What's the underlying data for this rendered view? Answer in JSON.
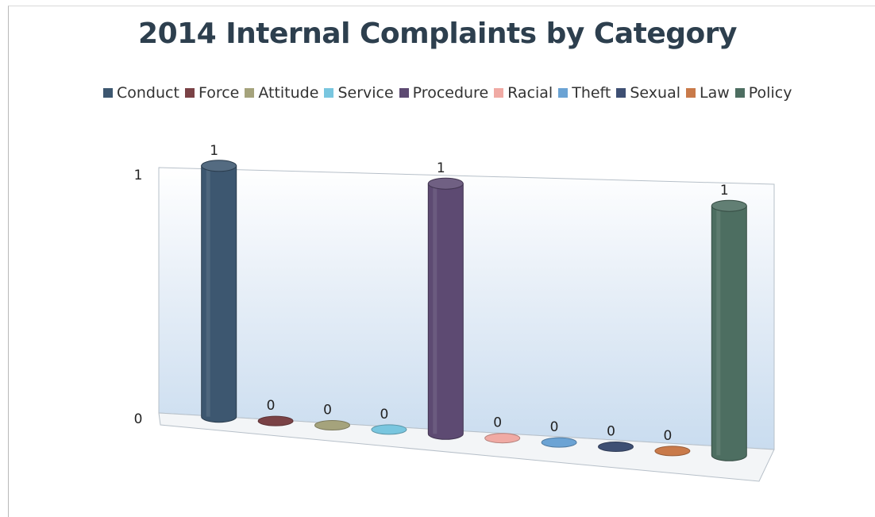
{
  "chart_data": {
    "type": "bar",
    "title": "2014 Internal Complaints by Category",
    "categories": [
      "Conduct",
      "Force",
      "Attitude",
      "Service",
      "Procedure",
      "Racial",
      "Theft",
      "Sexual",
      "Law",
      "Policy"
    ],
    "series": [
      {
        "name": "Conduct",
        "color": "#3d5770"
      },
      {
        "name": "Force",
        "color": "#7a4246"
      },
      {
        "name": "Attitude",
        "color": "#a5a37c"
      },
      {
        "name": "Service",
        "color": "#79c6df"
      },
      {
        "name": "Procedure",
        "color": "#5d4a72"
      },
      {
        "name": "Racial",
        "color": "#f0aaa4"
      },
      {
        "name": "Theft",
        "color": "#6ba3d4"
      },
      {
        "name": "Sexual",
        "color": "#3e4f73"
      },
      {
        "name": "Law",
        "color": "#c97a4a"
      },
      {
        "name": "Policy",
        "color": "#4d6e61"
      }
    ],
    "values": [
      1,
      0,
      0,
      0,
      1,
      0,
      0,
      0,
      0,
      1
    ],
    "data_labels": [
      "1",
      "0",
      "0",
      "0",
      "1",
      "0",
      "0",
      "0",
      "0",
      "1"
    ],
    "ytick_labels": [
      "0",
      "1"
    ],
    "ylim": [
      0,
      1
    ],
    "legend_position": "top",
    "grid": false,
    "style": "3d-cylinder"
  }
}
